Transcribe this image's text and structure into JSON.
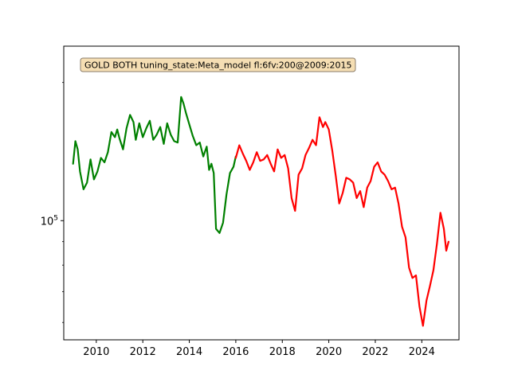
{
  "chart_data": {
    "type": "line",
    "title": "",
    "xlabel": "",
    "ylabel": "",
    "y_scale": "log",
    "grid": false,
    "xlim": [
      2008.6,
      2025.6
    ],
    "ylim": [
      55000,
      240000
    ],
    "x_ticks": [
      {
        "value": 2010,
        "label": "2010"
      },
      {
        "value": 2012,
        "label": "2012"
      },
      {
        "value": 2014,
        "label": "2014"
      },
      {
        "value": 2016,
        "label": "2016"
      },
      {
        "value": 2018,
        "label": "2018"
      },
      {
        "value": 2020,
        "label": "2020"
      },
      {
        "value": 2022,
        "label": "2022"
      },
      {
        "value": 2024,
        "label": "2024"
      }
    ],
    "y_major_ticks": [
      {
        "value": 100000,
        "label": "10",
        "exp": "5"
      }
    ],
    "y_minor_ticks": [
      60000,
      70000,
      80000,
      90000,
      200000
    ],
    "annotation": {
      "text": "GOLD BOTH tuning_state:Meta_model fl:6fv:200@2009:2015",
      "background": "#f5deb3",
      "border": "#8b7d6b",
      "position": "top-left"
    },
    "series": [
      {
        "color": "#008000",
        "x": [
          2009.0,
          2009.1,
          2009.2,
          2009.3,
          2009.45,
          2009.6,
          2009.75,
          2009.9,
          2010.05,
          2010.2,
          2010.35,
          2010.5,
          2010.65,
          2010.8,
          2010.9,
          2011.0,
          2011.15,
          2011.3,
          2011.45,
          2011.6,
          2011.7,
          2011.85,
          2012.0,
          2012.15,
          2012.3,
          2012.45,
          2012.6,
          2012.75,
          2012.9,
          2013.05,
          2013.2,
          2013.35,
          2013.5,
          2013.65,
          2013.75,
          2013.85,
          2014.0,
          2014.15,
          2014.3,
          2014.45,
          2014.6,
          2014.75,
          2014.85,
          2014.95,
          2015.05,
          2015.15,
          2015.3,
          2015.45,
          2015.6,
          2015.75,
          2015.9,
          2016.0
        ],
        "y": [
          133000,
          149000,
          143000,
          128000,
          117000,
          121000,
          136000,
          123000,
          128000,
          137000,
          134000,
          141000,
          156000,
          152000,
          158000,
          151000,
          143000,
          159000,
          170000,
          164000,
          150000,
          163000,
          152000,
          159000,
          165000,
          150000,
          154000,
          160000,
          147000,
          163000,
          154000,
          149000,
          148000,
          186000,
          180000,
          172000,
          162000,
          153000,
          146000,
          148000,
          138000,
          145000,
          129000,
          133000,
          127000,
          96000,
          94000,
          99000,
          114000,
          127000,
          131000,
          138000
        ]
      },
      {
        "color": "#ff0000",
        "x": [
          2016.0,
          2016.15,
          2016.3,
          2016.45,
          2016.6,
          2016.75,
          2016.9,
          2017.05,
          2017.2,
          2017.35,
          2017.5,
          2017.65,
          2017.8,
          2017.95,
          2018.1,
          2018.25,
          2018.4,
          2018.55,
          2018.7,
          2018.85,
          2019.0,
          2019.15,
          2019.3,
          2019.45,
          2019.6,
          2019.75,
          2019.85,
          2020.0,
          2020.15,
          2020.3,
          2020.45,
          2020.6,
          2020.75,
          2020.9,
          2021.05,
          2021.2,
          2021.35,
          2021.5,
          2021.65,
          2021.8,
          2021.95,
          2022.1,
          2022.25,
          2022.4,
          2022.55,
          2022.7,
          2022.85,
          2023.0,
          2023.15,
          2023.3,
          2023.45,
          2023.6,
          2023.75,
          2023.9,
          2024.05,
          2024.2,
          2024.35,
          2024.5,
          2024.65,
          2024.8,
          2024.95,
          2025.05,
          2025.15
        ],
        "y": [
          137000,
          146000,
          140000,
          135000,
          129000,
          134000,
          141000,
          135000,
          136000,
          139000,
          133000,
          128000,
          143000,
          137000,
          139000,
          130000,
          112000,
          105000,
          126000,
          130000,
          139000,
          144000,
          150000,
          146000,
          168000,
          160000,
          164000,
          158000,
          142000,
          125000,
          109000,
          115000,
          124000,
          123000,
          121000,
          112000,
          116000,
          107000,
          118000,
          122000,
          131000,
          134000,
          128000,
          126000,
          122000,
          117000,
          118000,
          109000,
          97000,
          92000,
          79000,
          75000,
          76000,
          65000,
          59000,
          67000,
          72000,
          78000,
          89000,
          104000,
          96000,
          86000,
          90000
        ]
      }
    ]
  }
}
